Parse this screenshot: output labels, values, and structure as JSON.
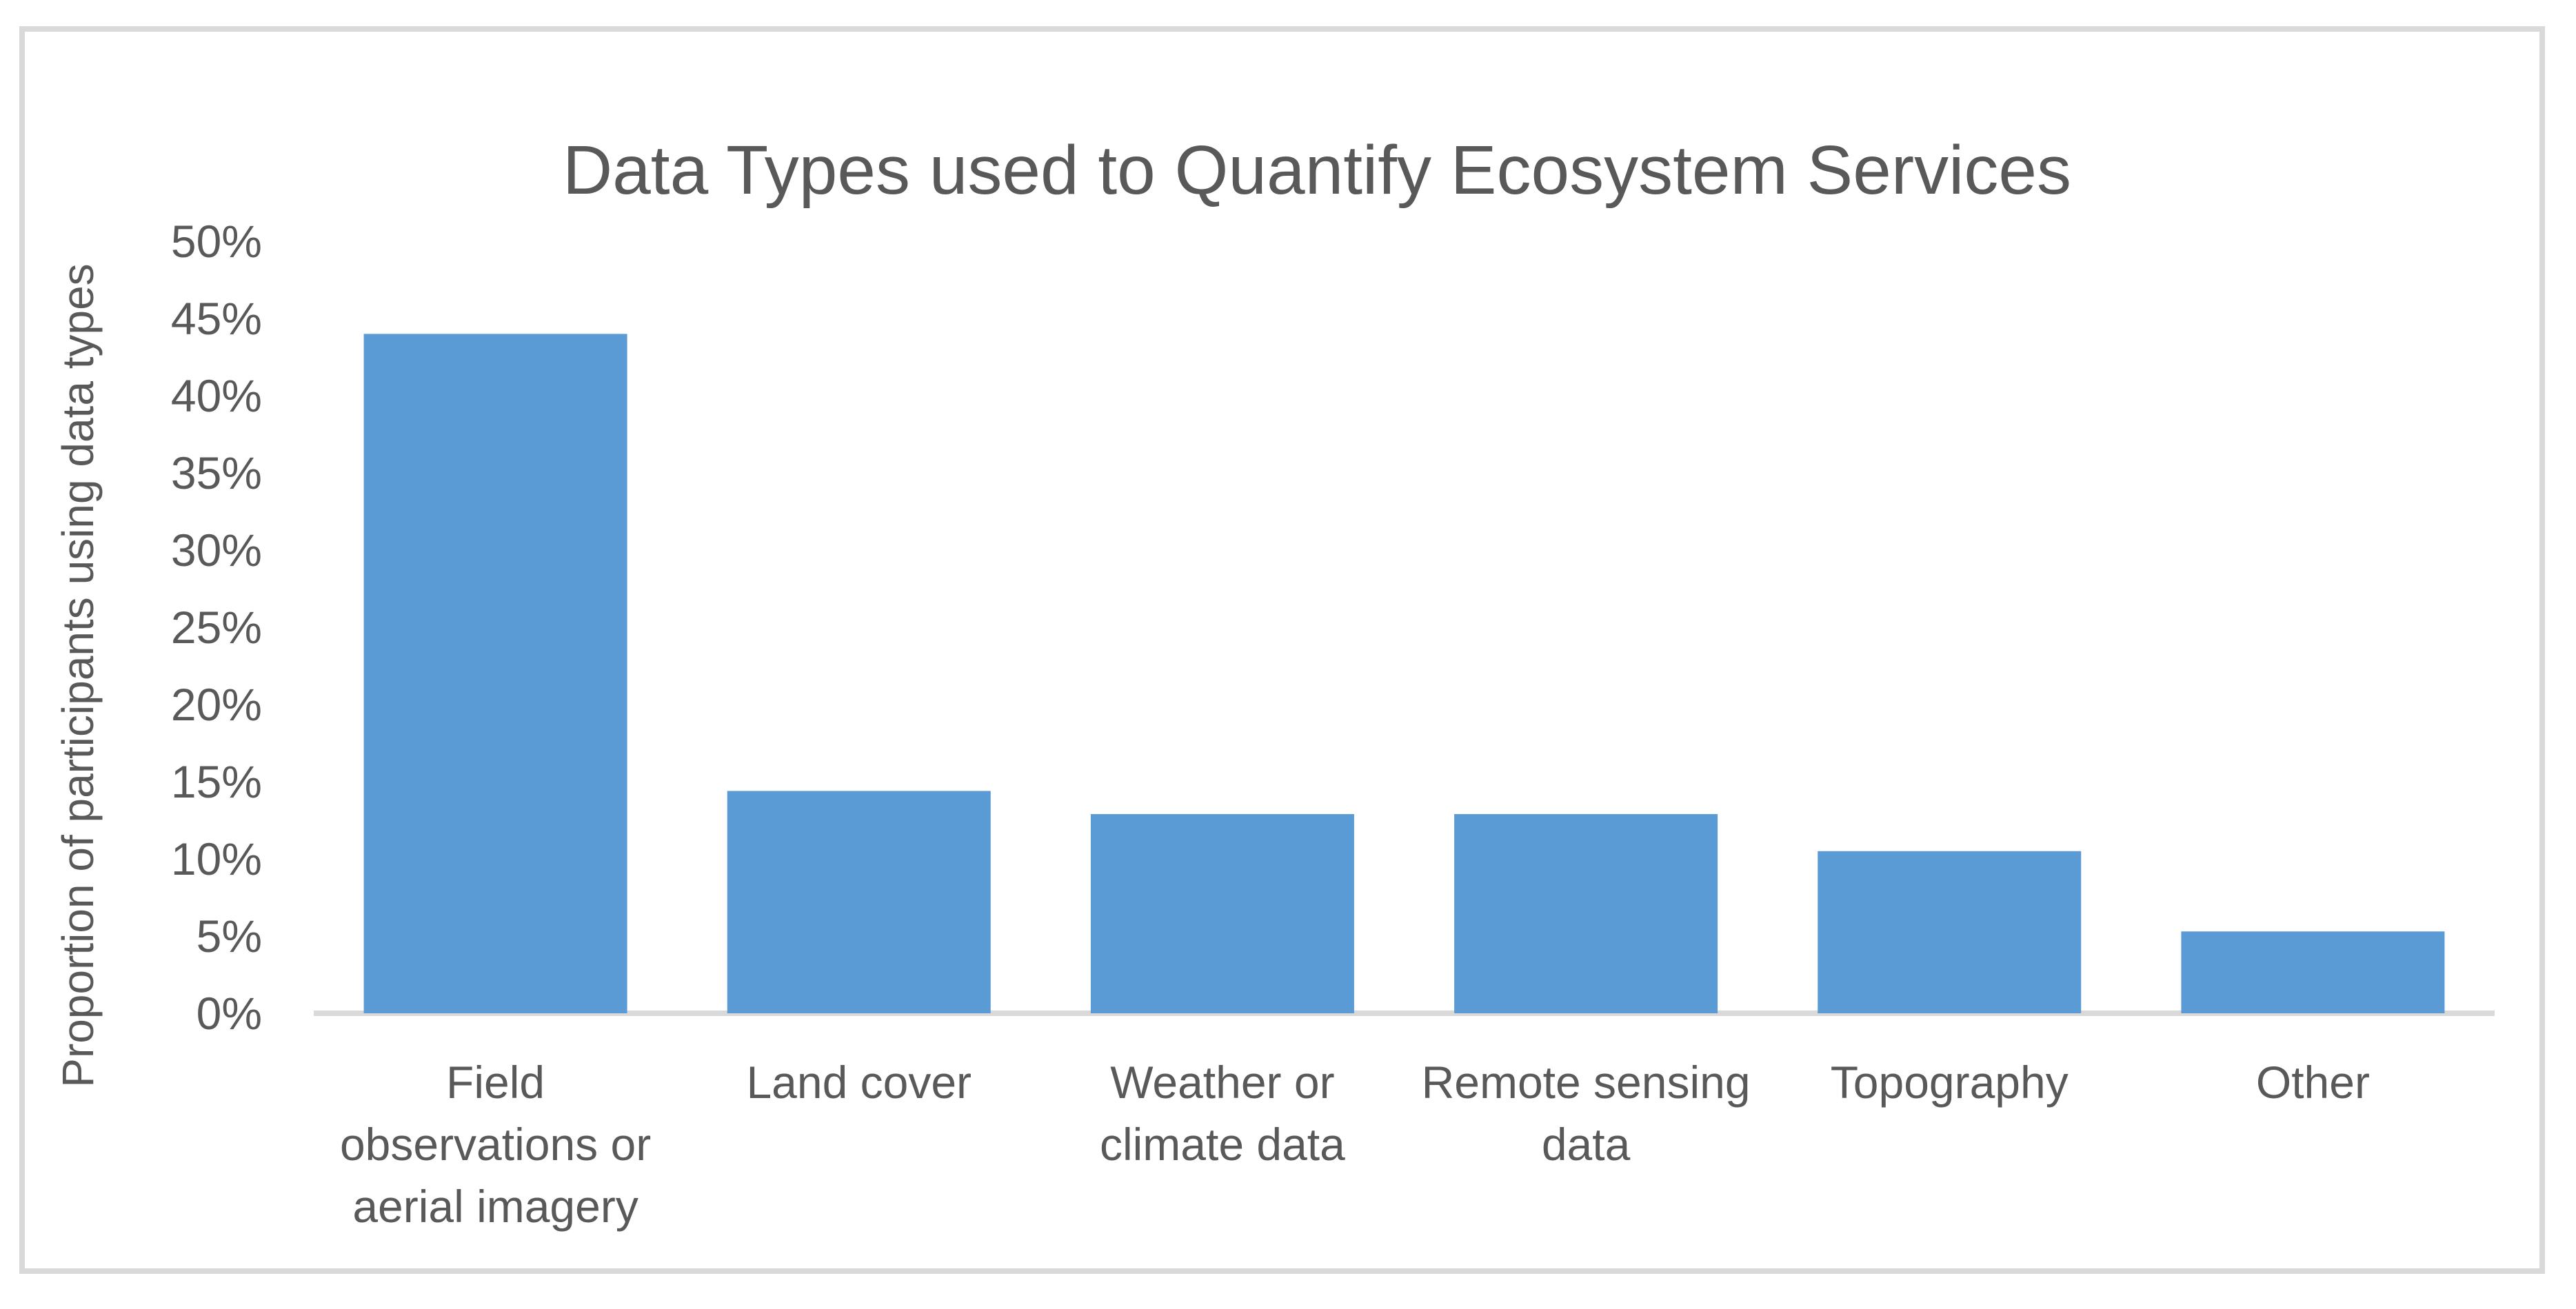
{
  "chart_data": {
    "type": "bar",
    "title": "Data Types used to Quantify Ecosystem Services",
    "xlabel": "",
    "ylabel": "Proportion of participants using data types",
    "categories": [
      "Field observations or aerial imagery",
      "Land cover",
      "Weather or climate data",
      "Remote sensing data",
      "Topography",
      "Other"
    ],
    "category_lines": [
      [
        "Field",
        "observations or",
        "aerial imagery"
      ],
      [
        "Land cover"
      ],
      [
        "Weather or",
        "climate data"
      ],
      [
        "Remote sensing",
        "data"
      ],
      [
        "Topography"
      ],
      [
        "Other"
      ]
    ],
    "values": [
      44,
      14.4,
      12.9,
      12.9,
      10.5,
      5.3
    ],
    "value_unit": "%",
    "ylim": [
      0,
      50
    ],
    "ytick_step": 5,
    "ytick_labels": [
      "0%",
      "5%",
      "10%",
      "15%",
      "20%",
      "25%",
      "30%",
      "35%",
      "40%",
      "45%",
      "50%"
    ],
    "grid": false,
    "legend": false,
    "colors": {
      "bar": "#5b9bd5",
      "text": "#595959",
      "axis_line": "#d9d9d9",
      "chart_border": "#d9d9d9",
      "background": "#ffffff"
    }
  }
}
